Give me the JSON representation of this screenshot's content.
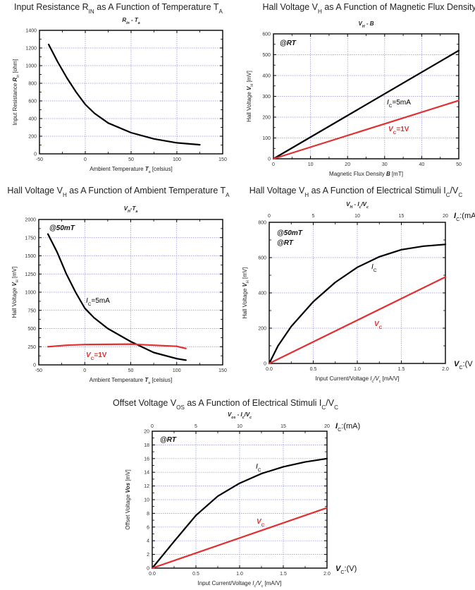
{
  "chart_data": [
    {
      "type": "line",
      "title": [
        "Input Resistance R",
        {
          "sub": "IN"
        },
        " as A Function of Temperature T",
        {
          "sub": "A"
        }
      ],
      "subtitle": [
        {
          "i": "R"
        },
        {
          "sub": "in"
        },
        {
          "i": " - T"
        },
        {
          "sub": "a"
        }
      ],
      "xlabel": [
        "Ambient Temperature ",
        {
          "b": "T"
        },
        {
          "sub": "a"
        },
        " [celsius]"
      ],
      "ylabel": [
        "Input Resistance ",
        {
          "b": "R"
        },
        {
          "sub": "in"
        },
        " [ohm]"
      ],
      "xlim": [
        -50,
        150
      ],
      "xticks": [
        -50,
        0,
        50,
        100,
        150
      ],
      "ylim": [
        0,
        1400
      ],
      "yticks": [
        0,
        200,
        400,
        600,
        800,
        1000,
        1200,
        1400
      ],
      "grid": true,
      "series": [
        {
          "color": "#000000",
          "points": [
            [
              -40,
              1240
            ],
            [
              -30,
              1040
            ],
            [
              -20,
              860
            ],
            [
              -10,
              700
            ],
            [
              0,
              560
            ],
            [
              10,
              460
            ],
            [
              25,
              350
            ],
            [
              50,
              240
            ],
            [
              75,
              170
            ],
            [
              100,
              125
            ],
            [
              125,
              103
            ]
          ]
        }
      ]
    },
    {
      "type": "line",
      "title": [
        "Hall Voltage V",
        {
          "sub": "H"
        },
        " as A Function of Magnetic Flux Density B"
      ],
      "subtitle": [
        {
          "i": "V"
        },
        {
          "sub": "H"
        },
        {
          "i": " - B"
        }
      ],
      "xlabel": [
        "Magnetic Flux Density ",
        {
          "b": "B"
        },
        " [mT]"
      ],
      "ylabel": [
        "Hall Voltage ",
        {
          "b": "V"
        },
        {
          "sub": "H"
        },
        " [mV]"
      ],
      "xlim": [
        0,
        50
      ],
      "xticks": [
        0,
        10,
        20,
        30,
        40,
        50
      ],
      "ylim": [
        0,
        600
      ],
      "yticks": [
        0,
        100,
        200,
        300,
        400,
        500,
        600
      ],
      "grid": true,
      "annotations": [
        "@RT"
      ],
      "series": [
        {
          "name": [
            {
              "i": "I"
            },
            {
              "sub": "C"
            },
            "=5mA"
          ],
          "color": "#000000",
          "points": [
            [
              0,
              0
            ],
            [
              50,
              520
            ]
          ]
        },
        {
          "name": [
            {
              "i": "V"
            },
            {
              "sub": "C"
            },
            "=1V"
          ],
          "color": "#e03030",
          "points": [
            [
              0,
              0
            ],
            [
              50,
              280
            ]
          ]
        }
      ]
    },
    {
      "type": "line",
      "title": [
        "Hall Voltage V",
        {
          "sub": "H"
        },
        " as A Function of Ambient Temperature T",
        {
          "sub": "A"
        }
      ],
      "subtitle": [
        {
          "i": "V"
        },
        {
          "sub": "H"
        },
        {
          "i": "-T"
        },
        {
          "sub": "a"
        }
      ],
      "xlabel": [
        "Ambient Temperature ",
        {
          "b": "T"
        },
        {
          "sub": "a"
        },
        " [celsius]"
      ],
      "ylabel": [
        "Hall Voltage ",
        {
          "b": "V"
        },
        {
          "sub": "H"
        },
        " [mV]"
      ],
      "xlim": [
        -50,
        150
      ],
      "xticks": [
        -50,
        0,
        50,
        100,
        150
      ],
      "ylim": [
        0,
        2000
      ],
      "yticks": [
        0,
        250,
        500,
        750,
        1000,
        1250,
        1500,
        1750,
        2000
      ],
      "grid": true,
      "annotations": [
        "@50mT"
      ],
      "series": [
        {
          "name": [
            {
              "i": "I"
            },
            {
              "sub": "C"
            },
            "=5mA"
          ],
          "color": "#000000",
          "points": [
            [
              -40,
              1800
            ],
            [
              -30,
              1550
            ],
            [
              -20,
              1250
            ],
            [
              -10,
              1000
            ],
            [
              0,
              780
            ],
            [
              10,
              650
            ],
            [
              25,
              500
            ],
            [
              50,
              320
            ],
            [
              75,
              170
            ],
            [
              100,
              85
            ],
            [
              110,
              65
            ]
          ]
        },
        {
          "name": [
            {
              "i": "V"
            },
            {
              "sub": "C"
            },
            "=1V"
          ],
          "color": "#e03030",
          "points": [
            [
              -40,
              250
            ],
            [
              -20,
              270
            ],
            [
              0,
              280
            ],
            [
              50,
              285
            ],
            [
              75,
              270
            ],
            [
              100,
              255
            ],
            [
              110,
              225
            ]
          ]
        }
      ]
    },
    {
      "type": "line",
      "title": [
        "Hall Voltage V",
        {
          "sub": "H"
        },
        " as A Function of Electrical Stimuli I",
        {
          "sub": "C"
        },
        "/V",
        {
          "sub": "C"
        }
      ],
      "subtitle": [
        {
          "i": "V"
        },
        {
          "sub": "H"
        },
        {
          "i": " - I"
        },
        {
          "sub": "c"
        },
        {
          "i": "/V"
        },
        {
          "sub": "c"
        }
      ],
      "xlabel": [
        "Input Current/Voltage ",
        {
          "i": "I"
        },
        {
          "sub": "c"
        },
        {
          "i": "/V"
        },
        {
          "sub": "c"
        },
        " [mA/V]"
      ],
      "ylabel": [
        "Hall Voltage ",
        {
          "b": "V"
        },
        {
          "sub": "H"
        },
        " [mV]"
      ],
      "xlim": [
        0,
        2
      ],
      "xticks": [
        0.0,
        0.5,
        1.0,
        1.5,
        2.0
      ],
      "x2lim": [
        0,
        20
      ],
      "x2ticks": [
        0,
        5,
        10,
        15,
        20
      ],
      "x2unit": [
        {
          "b": "I"
        },
        {
          "sub": "C"
        },
        ":(mA"
      ],
      "xunit": [
        {
          "b": "V"
        },
        {
          "sub": "C"
        },
        ":(V"
      ],
      "ylim": [
        0,
        800
      ],
      "yticks": [
        0,
        200,
        400,
        600,
        800
      ],
      "grid": true,
      "annotations": [
        "@50mT",
        "@RT"
      ],
      "series": [
        {
          "name": [
            {
              "i": "I"
            },
            {
              "sub": "C"
            }
          ],
          "color": "#000000",
          "points": [
            [
              0,
              0
            ],
            [
              0.1,
              100
            ],
            [
              0.25,
              210
            ],
            [
              0.5,
              350
            ],
            [
              0.75,
              460
            ],
            [
              1.0,
              545
            ],
            [
              1.25,
              605
            ],
            [
              1.5,
              645
            ],
            [
              1.75,
              665
            ],
            [
              2.0,
              675
            ]
          ]
        },
        {
          "name": [
            {
              "i": "V"
            },
            {
              "sub": "C"
            }
          ],
          "color": "#e03030",
          "points": [
            [
              0,
              0
            ],
            [
              2.0,
              490
            ]
          ]
        }
      ]
    },
    {
      "type": "line",
      "title": [
        "Offset Voltage V",
        {
          "sub": "OS"
        },
        " as A Function of Electrical Stimuli I",
        {
          "sub": "C"
        },
        "/V",
        {
          "sub": "C"
        }
      ],
      "subtitle": [
        {
          "i": "V"
        },
        {
          "sub": "os"
        },
        {
          "i": " - I"
        },
        {
          "sub": "c"
        },
        {
          "i": "/V"
        },
        {
          "sub": "c"
        }
      ],
      "xlabel": [
        "Input Current/Voltage ",
        {
          "i": "I"
        },
        {
          "sub": "c"
        },
        {
          "i": "/V"
        },
        {
          "sub": "c"
        },
        " [mA/V]"
      ],
      "ylabel": [
        "Offset Voltage ",
        {
          "b": "Vos"
        },
        " [mV]"
      ],
      "xlim": [
        0,
        2
      ],
      "xticks": [
        0.0,
        0.5,
        1.0,
        1.5,
        2.0
      ],
      "x2lim": [
        0,
        20
      ],
      "x2ticks": [
        0,
        5,
        10,
        15,
        20
      ],
      "x2unit": [
        {
          "b": "I"
        },
        {
          "sub": "C"
        },
        ":(mA)"
      ],
      "xunit": [
        {
          "b": "V"
        },
        {
          "sub": "C"
        },
        ":(V)"
      ],
      "ylim": [
        0,
        20
      ],
      "yticks": [
        0,
        2,
        4,
        6,
        8,
        10,
        12,
        14,
        16,
        18,
        20
      ],
      "grid": true,
      "annotations": [
        "@RT"
      ],
      "series": [
        {
          "name": [
            {
              "i": "I"
            },
            {
              "sub": "C"
            }
          ],
          "color": "#000000",
          "points": [
            [
              0,
              0
            ],
            [
              0.25,
              3.9
            ],
            [
              0.5,
              7.7
            ],
            [
              0.75,
              10.5
            ],
            [
              1.0,
              12.4
            ],
            [
              1.25,
              13.8
            ],
            [
              1.5,
              14.8
            ],
            [
              1.75,
              15.5
            ],
            [
              2.0,
              16
            ]
          ]
        },
        {
          "name": [
            {
              "i": "V"
            },
            {
              "sub": "C"
            }
          ],
          "color": "#e03030",
          "points": [
            [
              0,
              0
            ],
            [
              2.0,
              8.8
            ]
          ]
        }
      ]
    }
  ]
}
